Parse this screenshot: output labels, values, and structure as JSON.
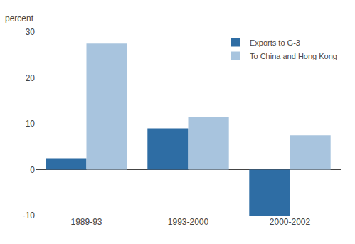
{
  "chart_data": {
    "type": "bar",
    "ylabel": "percent",
    "categories": [
      "1989-93",
      "1993-2000",
      "2000-2002"
    ],
    "series": [
      {
        "name": "Exports to G-3",
        "color": "#2e6da4",
        "values": [
          2.5,
          9.0,
          -10.0
        ]
      },
      {
        "name": "To China and Hong Kong",
        "color": "#a8c4de",
        "values": [
          27.5,
          11.5,
          7.5
        ]
      }
    ],
    "ylim": [
      -10,
      30
    ],
    "yticks": [
      -10,
      0,
      10,
      20,
      30
    ],
    "grid": true,
    "legend": "upper right"
  }
}
